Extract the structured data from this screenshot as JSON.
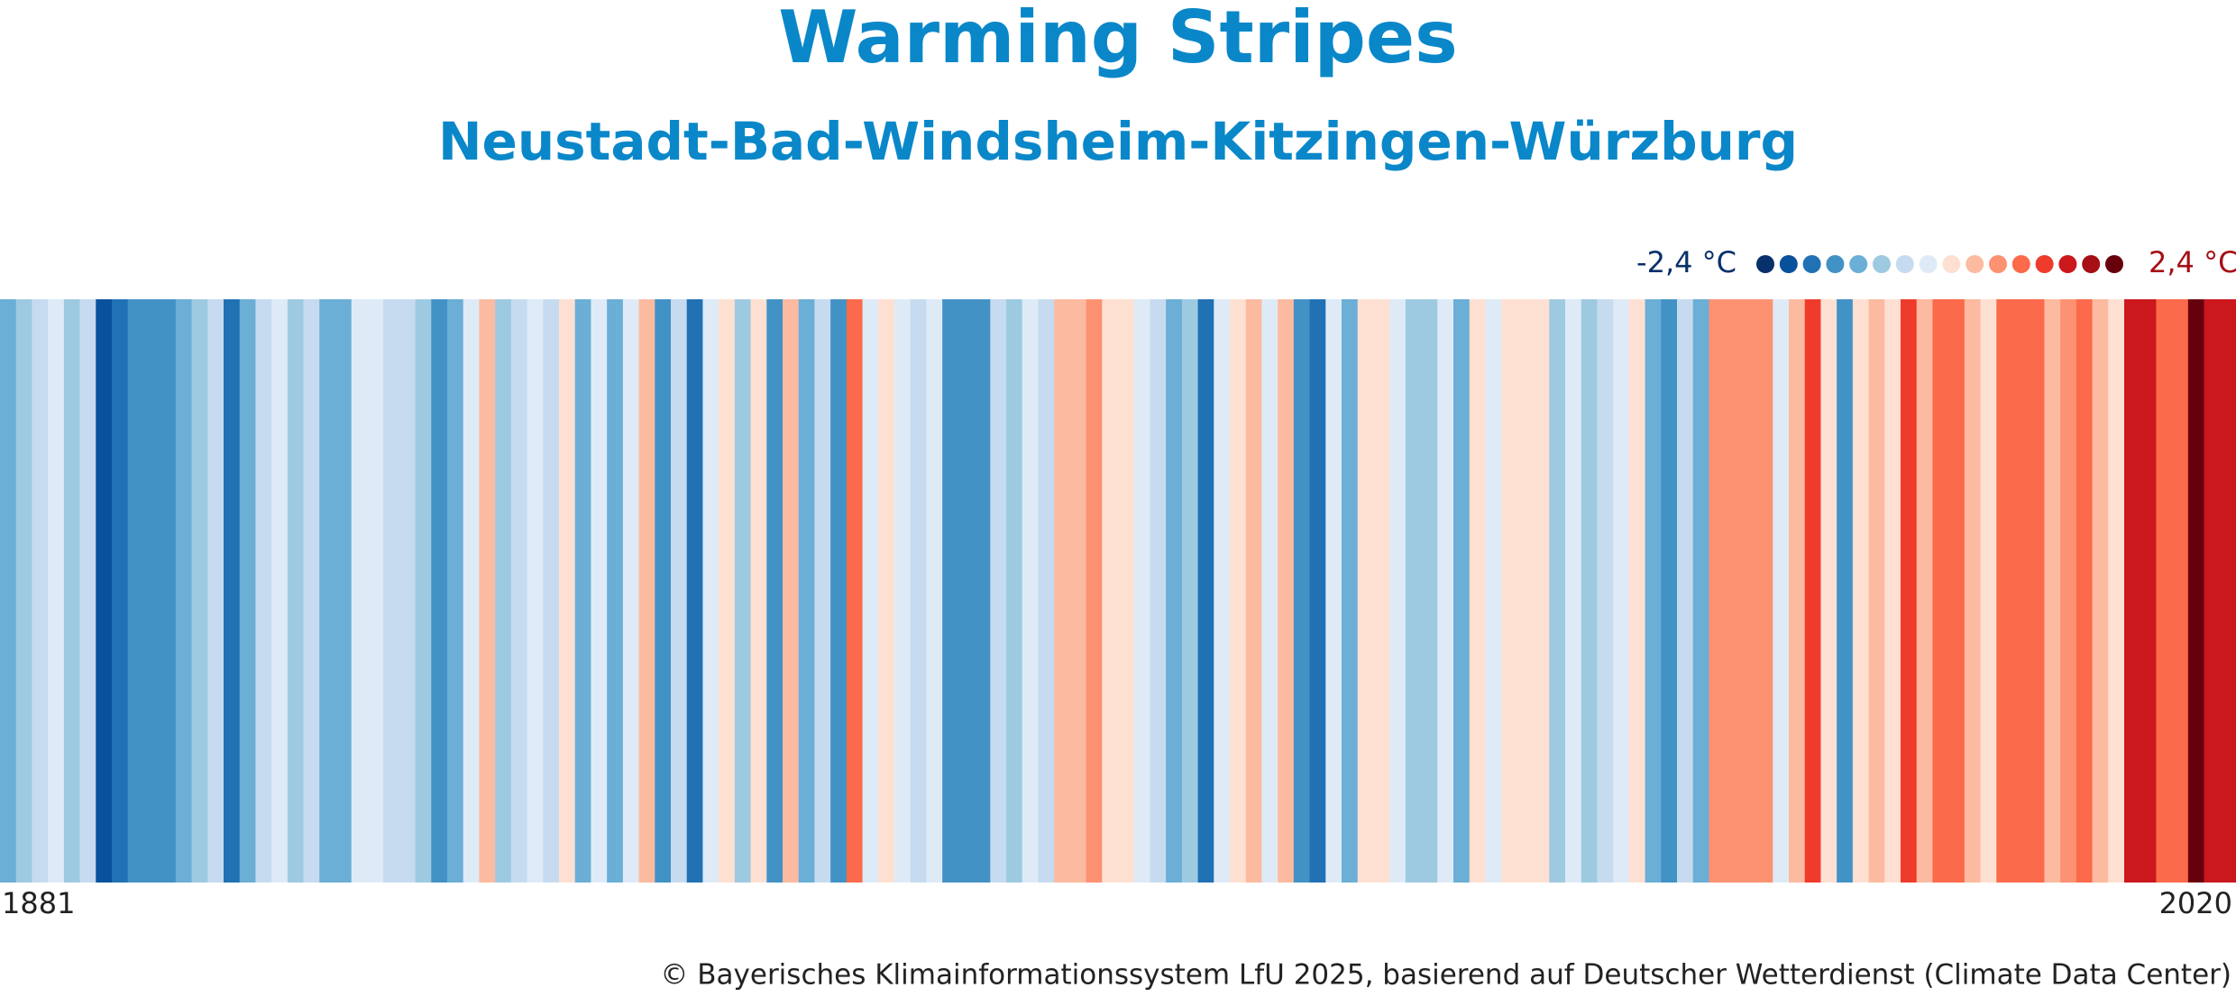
{
  "chart_data": {
    "type": "stripes",
    "title": "Warming Stripes",
    "subtitle": "Neustadt-Bad-Windsheim-Kitzingen-Würzburg",
    "xlim": [
      1881,
      2020
    ],
    "xticks": [
      1881,
      2020
    ],
    "values": [
      -1.05,
      -0.75,
      -0.45,
      -0.15,
      -0.75,
      -0.45,
      -1.95,
      -1.65,
      -1.35,
      -1.35,
      -1.35,
      -1.05,
      -0.75,
      -0.45,
      -1.65,
      -1.05,
      -0.45,
      -0.15,
      -0.75,
      -0.45,
      -1.05,
      -1.05,
      -0.15,
      -0.15,
      -0.45,
      -0.45,
      -0.75,
      -1.35,
      -1.05,
      -0.15,
      0.45,
      -0.75,
      -0.45,
      -0.15,
      -0.45,
      0.15,
      -1.05,
      -0.15,
      -1.05,
      -0.15,
      0.45,
      -1.35,
      -0.45,
      -1.65,
      -0.15,
      0.15,
      -0.75,
      0.15,
      -1.35,
      0.45,
      -1.05,
      -0.45,
      -1.35,
      1.05,
      -0.15,
      0.15,
      -0.15,
      -0.45,
      -0.15,
      -1.35,
      -1.35,
      -1.35,
      -0.45,
      -0.75,
      -0.15,
      -0.45,
      0.45,
      0.45,
      0.75,
      0.15,
      0.15,
      -0.15,
      -0.45,
      -1.05,
      -0.75,
      -1.65,
      -0.15,
      0.15,
      0.45,
      -0.15,
      0.45,
      -1.35,
      -1.65,
      -0.15,
      -1.05,
      0.15,
      0.15,
      -0.15,
      -0.75,
      -0.75,
      -0.15,
      -1.05,
      0.15,
      -0.15,
      0.15,
      0.15,
      0.15,
      -0.75,
      -0.15,
      -0.75,
      -0.45,
      -0.15,
      0.15,
      -1.05,
      -1.35,
      -0.45,
      -1.05,
      0.75,
      0.75,
      0.75,
      0.75,
      -0.15,
      0.45,
      1.35,
      0.15,
      -1.35,
      0.15,
      0.45,
      0.15,
      1.35,
      0.45,
      1.05,
      1.05,
      0.45,
      0.15,
      1.05,
      1.05,
      1.05,
      0.45,
      0.75,
      1.05,
      0.45,
      0.15,
      1.65,
      1.65,
      1.05,
      1.05,
      2.25,
      1.65,
      1.65
    ],
    "colorbar": {
      "ticks": [
        {
          "value": -2.4,
          "label": "-2,4 °C"
        },
        {
          "value": 2.4,
          "label": "2,4 °C"
        }
      ],
      "colors": [
        "#08306b",
        "#08519c",
        "#2171b5",
        "#4292c6",
        "#6baed6",
        "#9ecae1",
        "#c6dbef",
        "#deebf7",
        "#fee0d2",
        "#fcbba1",
        "#fc9272",
        "#fb6a4a",
        "#ef3b2c",
        "#cb181d",
        "#a50f15",
        "#67000d"
      ]
    },
    "source": "© Bayerisches Klimainformationssystem LfU 2025, basierend auf Deutscher Wetterdienst (Climate Data Center)"
  }
}
